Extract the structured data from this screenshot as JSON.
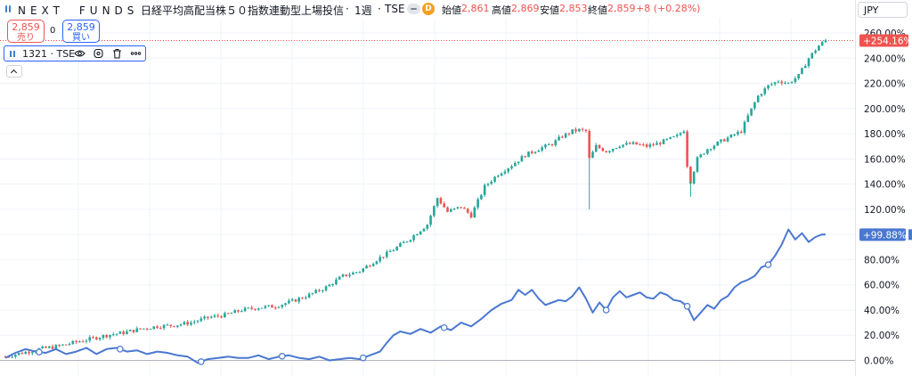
{
  "header": {
    "brand": "NEXT　FUNDS",
    "title": "日経平均高配当株５０指数連動型上場投信",
    "interval": "1週",
    "exchange": "TSE",
    "sep": "·",
    "d_badge": "D",
    "open_label": "始値",
    "open_value": "2,861",
    "high_label": "高値",
    "high_value": "2,869",
    "low_label": "安値",
    "low_value": "2,853",
    "close_label": "終値",
    "close_value": "2,859",
    "change": "+8 (+0.28%)"
  },
  "currency": "JPY",
  "trade": {
    "sell_price": "2,859",
    "sell_label": "売り",
    "spread": "0",
    "buy_price": "2,859",
    "buy_label": "買い"
  },
  "legend": {
    "symbol": "1321 · TSE",
    "icons": [
      "eye-icon",
      "settings-icon",
      "trash-icon",
      "more-icon"
    ]
  },
  "colors": {
    "up": "#26a69a",
    "down": "#ef5350",
    "compare_line": "#4a78d1",
    "accent": "#2962ff"
  },
  "chart_data": {
    "type": "line",
    "x_unit": "week",
    "y_unit": "percent change",
    "ylim": [
      -1,
      266
    ],
    "y_ticks": [
      "0.00%",
      "20.00%",
      "40.00%",
      "60.00%",
      "80.00%",
      "100.00%",
      "120.00%",
      "140.00%",
      "160.00%",
      "180.00%",
      "200.00%",
      "220.00%",
      "240.00%",
      "260.00%"
    ],
    "y_tick_values": [
      0,
      20,
      40,
      60,
      80,
      100,
      120,
      140,
      160,
      180,
      200,
      220,
      240,
      260
    ],
    "last_value_labels": {
      "main": "+254.16%",
      "compare": "+99.88%"
    },
    "series": [
      {
        "kind": "candlestick",
        "points": [
          [
            0,
            3
          ],
          [
            5,
            6
          ],
          [
            10,
            9
          ],
          [
            15,
            11
          ],
          [
            20,
            14
          ],
          [
            25,
            17
          ],
          [
            30,
            20
          ],
          [
            35,
            22
          ],
          [
            40,
            25
          ],
          [
            45,
            27
          ],
          [
            50,
            28
          ],
          [
            55,
            30
          ],
          [
            60,
            34
          ],
          [
            65,
            36
          ],
          [
            70,
            40
          ],
          [
            75,
            42
          ],
          [
            80,
            43
          ],
          [
            85,
            47
          ],
          [
            90,
            52
          ],
          [
            95,
            58
          ],
          [
            100,
            67
          ],
          [
            105,
            71
          ],
          [
            110,
            80
          ],
          [
            115,
            88
          ],
          [
            120,
            97
          ],
          [
            125,
            108
          ],
          [
            128,
            129
          ],
          [
            131,
            118
          ],
          [
            135,
            122
          ],
          [
            138,
            115
          ],
          [
            142,
            138
          ],
          [
            146,
            148
          ],
          [
            150,
            155
          ],
          [
            154,
            163
          ],
          [
            158,
            168
          ],
          [
            162,
            172
          ],
          [
            165,
            178
          ],
          [
            168,
            182
          ],
          [
            170,
            183
          ],
          [
            172,
            182
          ],
          [
            173,
            160
          ],
          [
            175,
            170
          ],
          [
            178,
            166
          ],
          [
            182,
            171
          ],
          [
            186,
            172
          ],
          [
            190,
            170
          ],
          [
            193,
            172
          ],
          [
            196,
            175
          ],
          [
            199,
            178
          ],
          [
            201,
            183
          ],
          [
            202,
            155
          ],
          [
            203,
            142
          ],
          [
            205,
            160
          ],
          [
            208,
            168
          ],
          [
            212,
            174
          ],
          [
            215,
            178
          ],
          [
            218,
            182
          ],
          [
            220,
            194
          ],
          [
            223,
            210
          ],
          [
            226,
            218
          ],
          [
            229,
            222
          ],
          [
            232,
            220
          ],
          [
            235,
            226
          ],
          [
            238,
            240
          ],
          [
            241,
            250
          ],
          [
            243,
            254
          ]
        ]
      },
      {
        "kind": "line",
        "points": [
          [
            0,
            2
          ],
          [
            3,
            6
          ],
          [
            6,
            9
          ],
          [
            9,
            7
          ],
          [
            12,
            6
          ],
          [
            15,
            9
          ],
          [
            18,
            5
          ],
          [
            21,
            7
          ],
          [
            24,
            10
          ],
          [
            27,
            5
          ],
          [
            30,
            9
          ],
          [
            33,
            10
          ],
          [
            36,
            7
          ],
          [
            39,
            8
          ],
          [
            42,
            5
          ],
          [
            45,
            7
          ],
          [
            48,
            6
          ],
          [
            51,
            4
          ],
          [
            54,
            3
          ],
          [
            57,
            -2
          ],
          [
            60,
            1
          ],
          [
            63,
            2
          ],
          [
            66,
            3
          ],
          [
            69,
            2
          ],
          [
            72,
            2
          ],
          [
            75,
            4
          ],
          [
            78,
            1
          ],
          [
            81,
            3
          ],
          [
            84,
            4
          ],
          [
            87,
            2
          ],
          [
            90,
            1
          ],
          [
            93,
            3
          ],
          [
            96,
            0
          ],
          [
            99,
            1
          ],
          [
            102,
            2
          ],
          [
            105,
            1
          ],
          [
            108,
            4
          ],
          [
            111,
            7
          ],
          [
            113,
            14
          ],
          [
            115,
            20
          ],
          [
            117,
            23
          ],
          [
            120,
            21
          ],
          [
            123,
            25
          ],
          [
            126,
            22
          ],
          [
            129,
            27
          ],
          [
            132,
            24
          ],
          [
            135,
            30
          ],
          [
            138,
            27
          ],
          [
            141,
            33
          ],
          [
            144,
            40
          ],
          [
            147,
            45
          ],
          [
            150,
            48
          ],
          [
            152,
            56
          ],
          [
            154,
            52
          ],
          [
            156,
            56
          ],
          [
            158,
            49
          ],
          [
            160,
            44
          ],
          [
            162,
            46
          ],
          [
            164,
            48
          ],
          [
            166,
            47
          ],
          [
            168,
            51
          ],
          [
            170,
            58
          ],
          [
            172,
            49
          ],
          [
            174,
            38
          ],
          [
            176,
            46
          ],
          [
            178,
            40
          ],
          [
            180,
            50
          ],
          [
            182,
            55
          ],
          [
            184,
            50
          ],
          [
            186,
            52
          ],
          [
            188,
            54
          ],
          [
            190,
            50
          ],
          [
            192,
            49
          ],
          [
            194,
            54
          ],
          [
            196,
            52
          ],
          [
            198,
            48
          ],
          [
            200,
            47
          ],
          [
            202,
            43
          ],
          [
            204,
            32
          ],
          [
            206,
            38
          ],
          [
            208,
            44
          ],
          [
            210,
            41
          ],
          [
            212,
            48
          ],
          [
            214,
            51
          ],
          [
            216,
            58
          ],
          [
            218,
            62
          ],
          [
            220,
            64
          ],
          [
            222,
            67
          ],
          [
            224,
            74
          ],
          [
            226,
            76
          ],
          [
            228,
            83
          ],
          [
            230,
            92
          ],
          [
            232,
            104
          ],
          [
            234,
            96
          ],
          [
            236,
            101
          ],
          [
            238,
            94
          ],
          [
            240,
            98
          ],
          [
            242,
            100
          ],
          [
            243,
            99.88
          ]
        ],
        "markers_x": [
          10,
          34,
          58,
          82,
          106,
          130,
          178,
          202,
          226
        ]
      }
    ]
  }
}
